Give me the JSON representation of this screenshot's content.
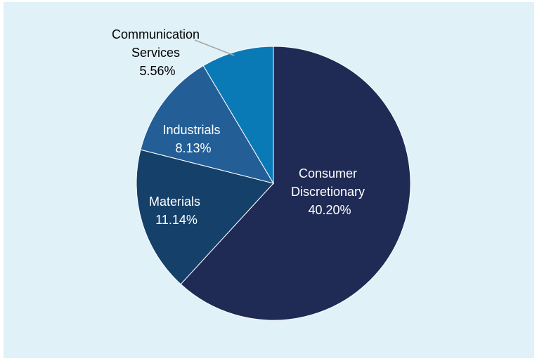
{
  "chart_data": {
    "type": "pie",
    "title": "",
    "legend": "none",
    "slices": [
      {
        "label_lines": [
          "Consumer",
          "Discretionary"
        ],
        "percent_label": "40.20%",
        "value": 40.2,
        "color": "#1f2a55",
        "label_color": "#ffffff"
      },
      {
        "label_lines": [
          "Materials"
        ],
        "percent_label": "11.14%",
        "value": 11.14,
        "color": "#15406a",
        "label_color": "#ffffff"
      },
      {
        "label_lines": [
          "Industrials"
        ],
        "percent_label": "8.13%",
        "value": 8.13,
        "color": "#235e96",
        "label_color": "#ffffff"
      },
      {
        "label_lines": [
          "Communication",
          "Services"
        ],
        "percent_label": "5.56%",
        "value": 5.56,
        "color": "#0a7ab6",
        "label_color": "#000000"
      }
    ],
    "background_color": "#e0f1f8"
  }
}
